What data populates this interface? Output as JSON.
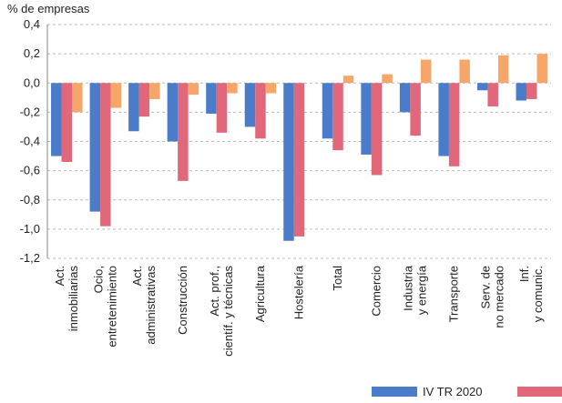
{
  "chart_data": {
    "type": "bar",
    "y_label": "% de empresas",
    "categories": [
      [
        "Act.",
        "inmobiliarias"
      ],
      [
        "Ocio,",
        "entretenimiento"
      ],
      [
        "Act.",
        "administrativas"
      ],
      [
        "Construcción"
      ],
      [
        "Act. prof.,",
        "científ. y técnicas"
      ],
      [
        "Agricultura"
      ],
      [
        "Hostelería"
      ],
      [
        "Total"
      ],
      [
        "Comercio"
      ],
      [
        "Industria",
        "y energía"
      ],
      [
        "Transporte"
      ],
      [
        "Serv. de",
        "no mercado"
      ],
      [
        "Inf.",
        "y comunic."
      ]
    ],
    "series": [
      {
        "name": "IV TR 2020",
        "color": "#4a7cc9",
        "values": [
          -0.5,
          -0.88,
          -0.33,
          -0.4,
          -0.21,
          -0.3,
          -1.08,
          -0.38,
          -0.49,
          -0.2,
          -0.5,
          -0.05,
          -0.12
        ]
      },
      {
        "name": null,
        "color": "#e0687a",
        "values": [
          -0.54,
          -0.98,
          -0.23,
          -0.67,
          -0.34,
          -0.38,
          -1.05,
          -0.46,
          -0.63,
          -0.36,
          -0.57,
          -0.16,
          -0.11
        ]
      },
      {
        "name": null,
        "color": "#f7a66a",
        "values": [
          -0.2,
          -0.17,
          -0.11,
          -0.08,
          -0.07,
          -0.07,
          null,
          0.05,
          0.06,
          0.16,
          0.16,
          0.19,
          0.2
        ]
      }
    ],
    "ylim": [
      -1.2,
      0.4
    ],
    "yticks": [
      {
        "value": -1.2,
        "label": "-1,2"
      },
      {
        "value": -1.0,
        "label": "-1,0"
      },
      {
        "value": -0.8,
        "label": "-0,8"
      },
      {
        "value": -0.6,
        "label": "-0,6"
      },
      {
        "value": -0.4,
        "label": "-0,4"
      },
      {
        "value": -0.2,
        "label": "-0,2"
      },
      {
        "value": 0,
        "label": "0,0"
      },
      {
        "value": 0.2,
        "label": "0,2"
      },
      {
        "value": 0.4,
        "label": "0,4"
      }
    ],
    "grid": true
  }
}
